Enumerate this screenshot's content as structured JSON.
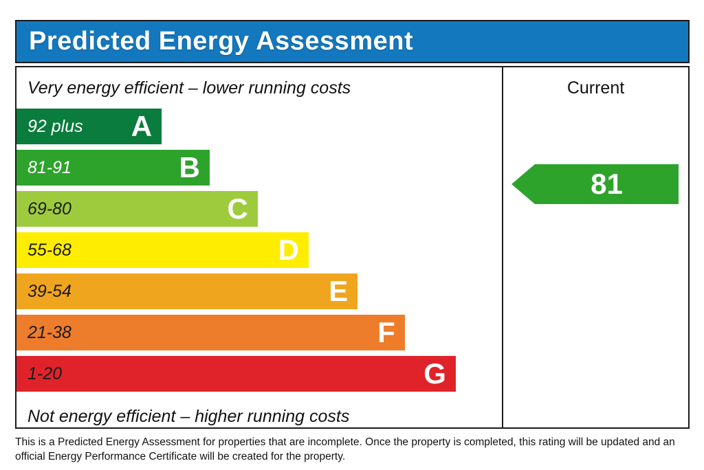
{
  "header": {
    "title": "Predicted Energy Assessment",
    "bar_color": "#1478BE",
    "text_color": "#FFFFFF"
  },
  "chart_data": {
    "type": "bar",
    "title": "Predicted Energy Assessment",
    "top_note": "Very energy efficient – lower running costs",
    "bottom_note": "Not energy efficient – higher running costs",
    "column_header": "Current",
    "bands": [
      {
        "grade": "A",
        "range": "92 plus",
        "min": 92,
        "max": 100,
        "color": "#0A7C3E",
        "label_color": "#FFFFFF",
        "width": "29.9%"
      },
      {
        "grade": "B",
        "range": "81-91",
        "min": 81,
        "max": 91,
        "color": "#2EA32C",
        "label_color": "#FFFFFF",
        "width": "39.8%"
      },
      {
        "grade": "C",
        "range": "69-80",
        "min": 69,
        "max": 80,
        "color": "#9ECB3D",
        "label_color": "#1A1A1A",
        "width": "49.7%"
      },
      {
        "grade": "D",
        "range": "55-68",
        "min": 55,
        "max": 68,
        "color": "#FFED00",
        "label_color": "#1A1A1A",
        "width": "60.2%"
      },
      {
        "grade": "E",
        "range": "39-54",
        "min": 39,
        "max": 54,
        "color": "#F0A51E",
        "label_color": "#1A1A1A",
        "width": "70.3%"
      },
      {
        "grade": "F",
        "range": "21-38",
        "min": 21,
        "max": 38,
        "color": "#EE7D2B",
        "label_color": "#1A1A1A",
        "width": "80.0%"
      },
      {
        "grade": "G",
        "range": "1-20",
        "min": 1,
        "max": 20,
        "color": "#E0232A",
        "label_color": "#1A1A1A",
        "width": "90.5%"
      }
    ],
    "current": {
      "value": "81",
      "grade": "B",
      "arrow_color": "#2EA32C",
      "text_color": "#FFFFFF"
    },
    "legend_position": "none",
    "grid": false
  },
  "footer": {
    "lines": [
      "This is a Predicted Energy Assessment for properties that are incomplete. Once the property is completed, this rating will be updated and an",
      "official Energy Performance Certificate will be created for the property."
    ]
  }
}
